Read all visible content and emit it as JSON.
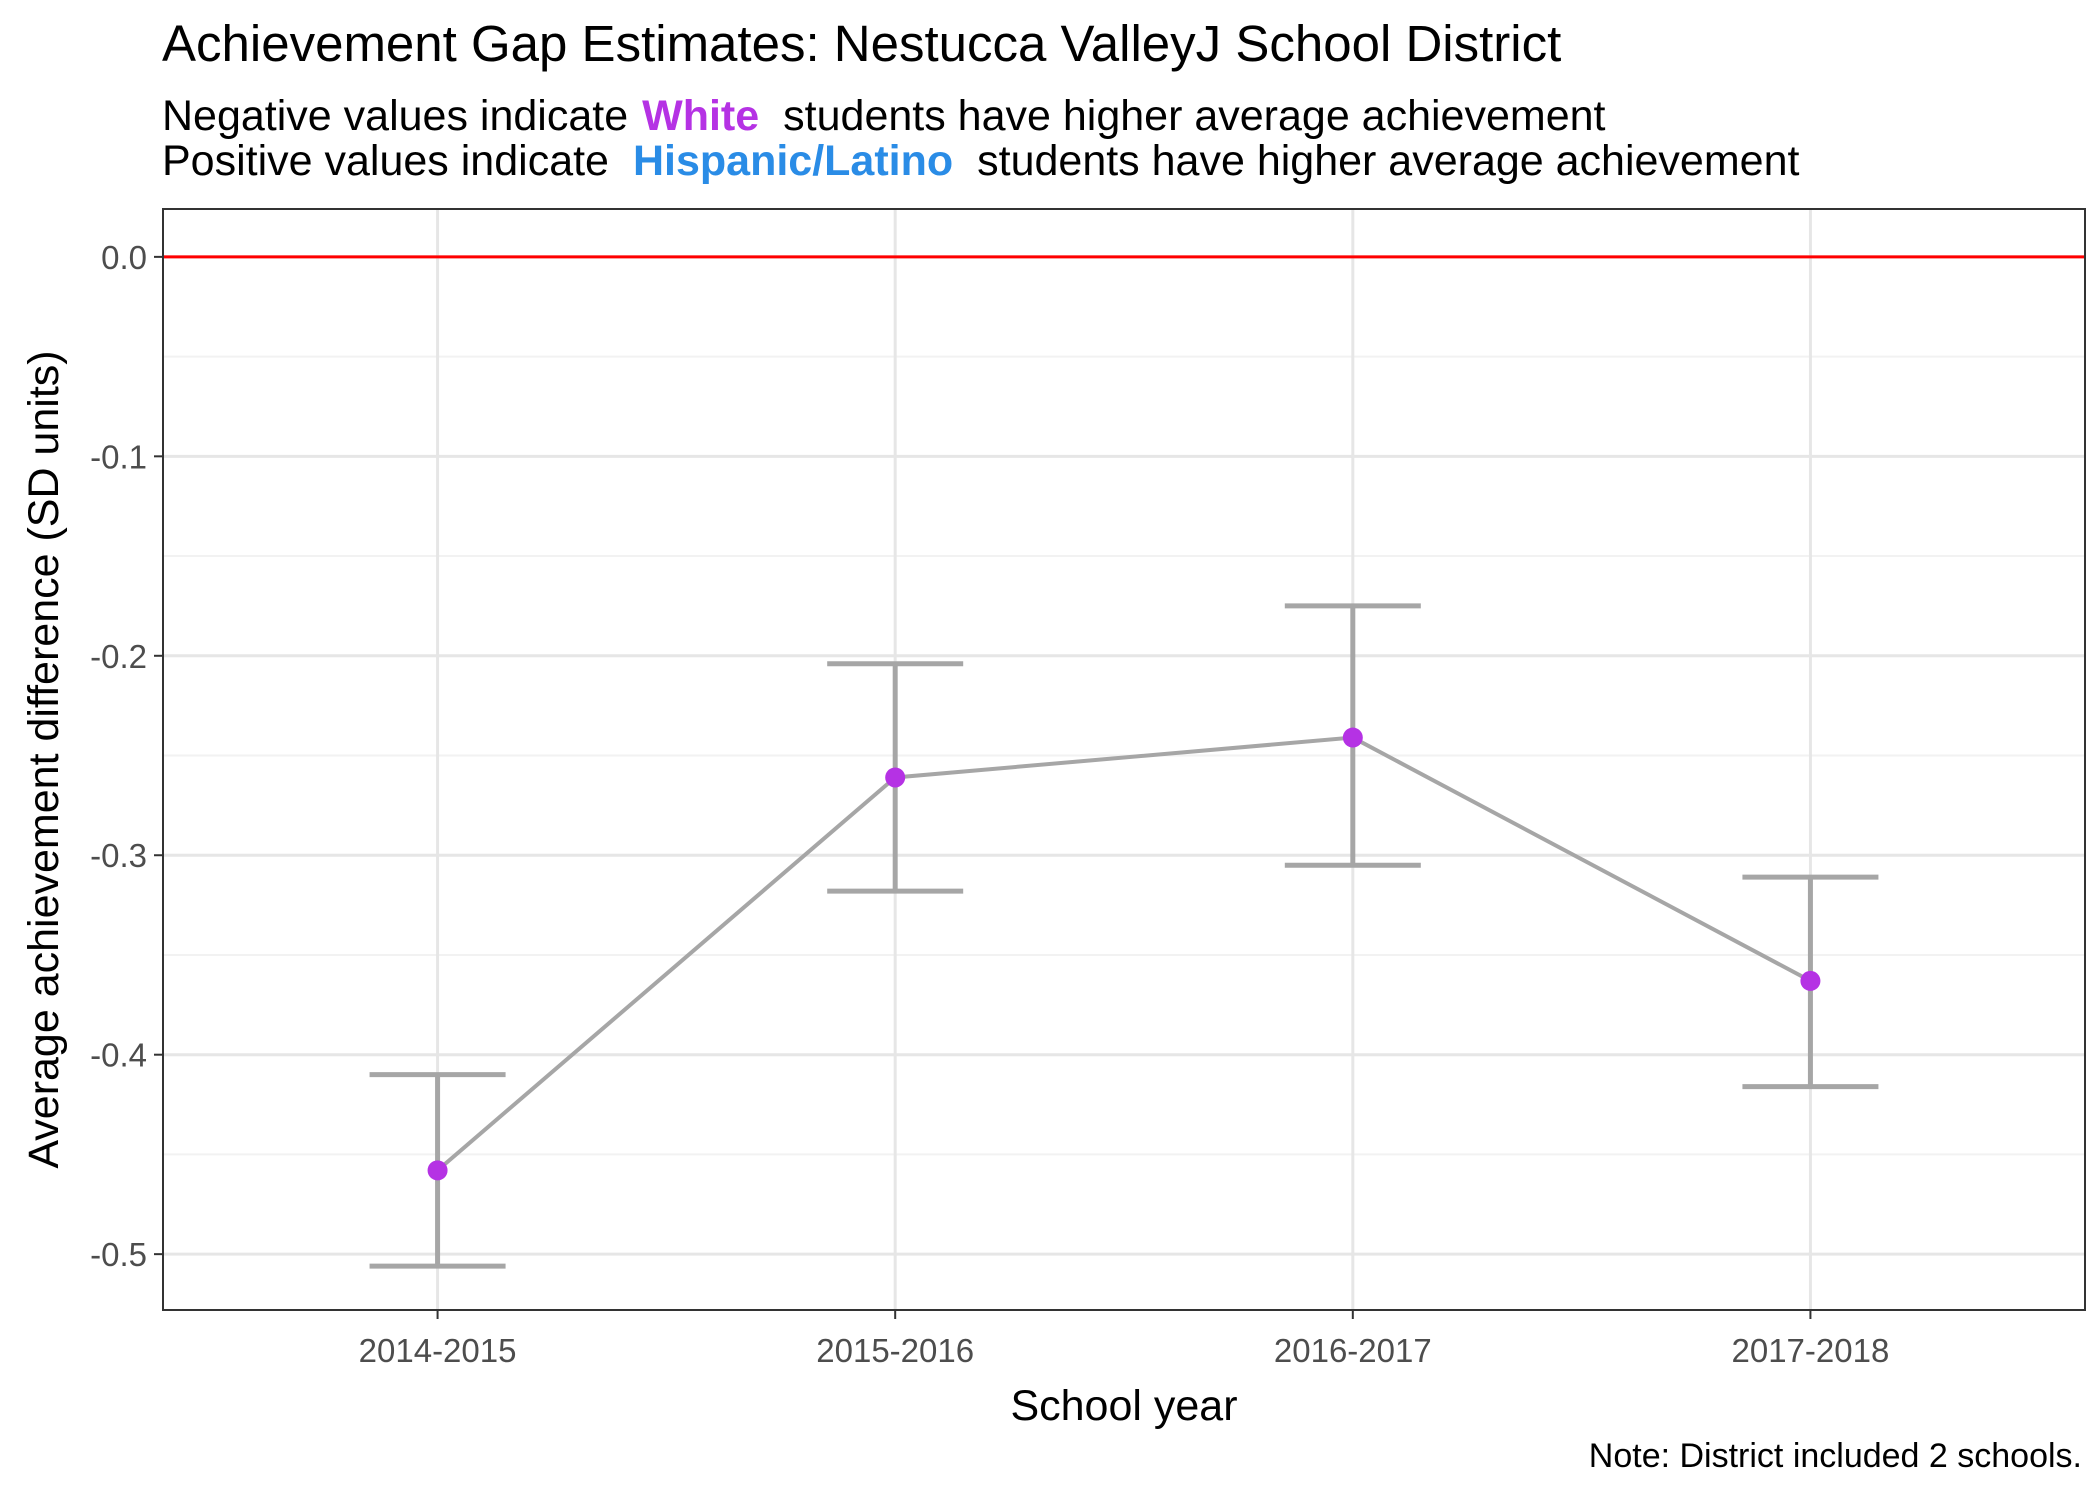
{
  "title": "Achievement Gap Estimates: Nestucca ValleyJ School District",
  "subtitle": {
    "line1": {
      "prefix": "Negative values indicate",
      "group": "White",
      "suffix": "students have higher average achievement"
    },
    "line2": {
      "prefix": "Positive values indicate",
      "group": "Hispanic/Latino",
      "suffix": "students have higher average achievement"
    }
  },
  "note": "Note: District included 2 schools.",
  "colors": {
    "white_group": "#b532e4",
    "hispanic_group": "#2a8ce6",
    "zero_line": "#ff0000",
    "series_line": "#a6a6a6",
    "point": "#b532e4"
  },
  "chart_data": {
    "type": "line",
    "xlabel": "School year",
    "ylabel": "Average achievement difference (SD units)",
    "categories": [
      "2014-2015",
      "2015-2016",
      "2016-2017",
      "2017-2018"
    ],
    "values": [
      -0.458,
      -0.261,
      -0.241,
      -0.363
    ],
    "error_upper": [
      -0.41,
      -0.204,
      -0.175,
      -0.311
    ],
    "error_lower": [
      -0.506,
      -0.318,
      -0.305,
      -0.416
    ],
    "ylim": [
      -0.528,
      0.024
    ],
    "yticks": [
      0.0,
      -0.1,
      -0.2,
      -0.3,
      -0.4,
      -0.5
    ],
    "ytick_labels": [
      "0.0",
      "-0.1",
      "-0.2",
      "-0.3",
      "-0.4",
      "-0.5"
    ],
    "reference_line": 0.0,
    "grid": true
  }
}
